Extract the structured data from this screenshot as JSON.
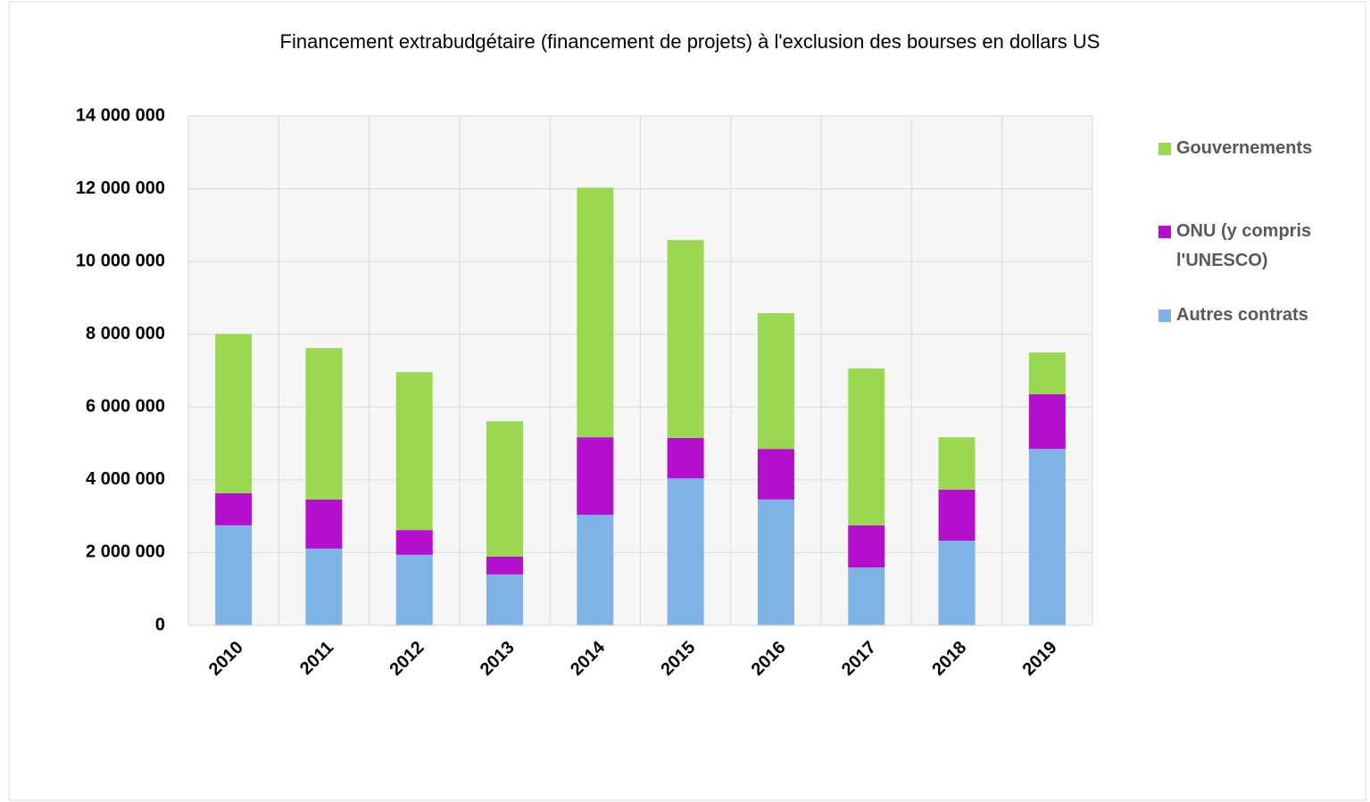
{
  "chart_data": {
    "type": "stacked-bar",
    "title": "Financement extrabudgétaire (financement de projets) à l'exclusion des bourses en dollars US",
    "categories": [
      "2010",
      "2011",
      "2012",
      "2013",
      "2014",
      "2015",
      "2016",
      "2017",
      "2018",
      "2019"
    ],
    "series": [
      {
        "name": "Autres contrats",
        "color": "#7fb2e5",
        "values": [
          2750000,
          2110000,
          1940000,
          1400000,
          3040000,
          4040000,
          3460000,
          1590000,
          2330000,
          4850000
        ]
      },
      {
        "name": "ONU (y compris l'UNESCO)",
        "color": "#b30fcc",
        "values": [
          880000,
          1350000,
          680000,
          490000,
          2130000,
          1110000,
          1390000,
          1160000,
          1400000,
          1500000
        ]
      },
      {
        "name": "Gouvernements",
        "color": "#9bd852",
        "values": [
          4380000,
          4160000,
          4340000,
          3720000,
          6860000,
          5440000,
          3730000,
          4310000,
          1440000,
          1150000
        ]
      }
    ],
    "ylim": [
      0,
      14000000
    ],
    "yticks": [
      0,
      {
        "value": 2000000,
        "label": "2 000 000"
      },
      {
        "value": 4000000,
        "label": "4 000 000"
      },
      {
        "value": 6000000,
        "label": "6 000 000"
      },
      {
        "value": 8000000,
        "label": "8 000 000"
      },
      {
        "value": 10000000,
        "label": "10 000 000"
      },
      {
        "value": 12000000,
        "label": "12 000 000"
      },
      {
        "value": 14000000,
        "label": "14 000 000"
      }
    ],
    "grid": true,
    "legend": "right"
  }
}
